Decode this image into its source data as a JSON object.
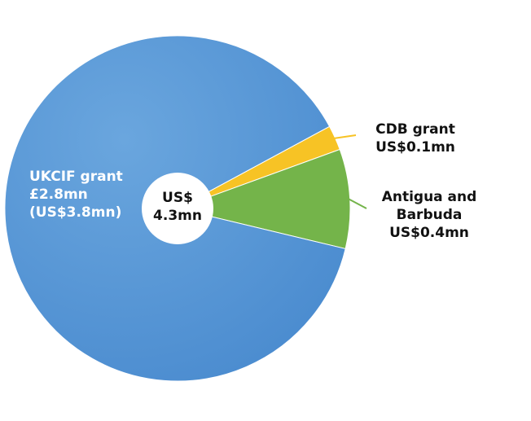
{
  "chart_data": {
    "type": "pie",
    "categories": [
      "UKCIF grant",
      "CDB grant",
      "Antigua and Barbuda"
    ],
    "values": [
      3.8,
      0.1,
      0.4
    ],
    "value_labels": [
      "£2.8mn (US$3.8mn)",
      "US$0.1mn",
      "US$0.4mn"
    ],
    "colors": [
      "#5b9bd8",
      "#f7c325",
      "#74b44a"
    ],
    "center_label": "US$ 4.3mn"
  }
}
